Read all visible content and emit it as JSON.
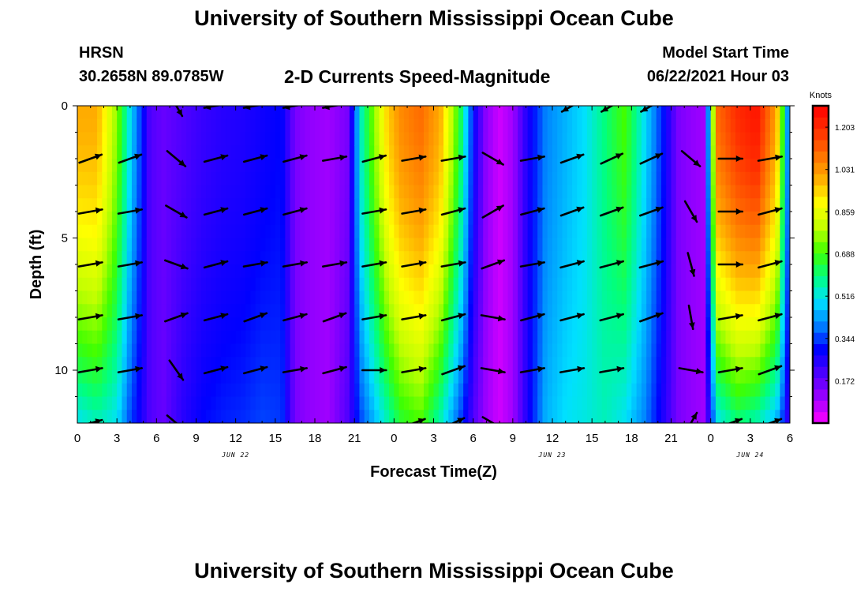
{
  "header": {
    "title": "University of Southern Mississippi Ocean Cube",
    "station": "HRSN",
    "coordinates": "30.2658N  89.0785W",
    "product": "2-D Currents Speed-Magnitude",
    "model_start_label": "Model Start Time",
    "model_start_value": "06/22/2021 Hour 03"
  },
  "footer": {
    "title": "University of Southern Mississippi Ocean Cube"
  },
  "chart_data": {
    "type": "heatmap",
    "xlabel": "Forecast Time(Z)",
    "ylabel": "Depth (ft)",
    "x_ticks": [
      "0",
      "3",
      "6",
      "9",
      "12",
      "15",
      "18",
      "21",
      "0",
      "3",
      "6",
      "9",
      "12",
      "15",
      "18",
      "21",
      "0",
      "3",
      "6"
    ],
    "x_range_hours": [
      0,
      54
    ],
    "day_labels": [
      {
        "label": "JUN 22",
        "hour": 12
      },
      {
        "label": "JUN 23",
        "hour": 36
      },
      {
        "label": "JUN 24",
        "hour": 51
      }
    ],
    "y_ticks": [
      0,
      5,
      10
    ],
    "ylim": [
      0,
      12
    ],
    "y_reversed": true,
    "colorbar": {
      "title": "Knots",
      "ticks": [
        1.203,
        1.031,
        0.859,
        0.688,
        0.516,
        0.344,
        0.172
      ],
      "vmin": 0.0,
      "vmax": 1.29,
      "colors": [
        "#ff00ff",
        "#a000ff",
        "#5000ff",
        "#0000ff",
        "#0080ff",
        "#00e0ff",
        "#00ff80",
        "#40ff00",
        "#c0ff00",
        "#ffff00",
        "#ffb000",
        "#ff7000",
        "#ff3000",
        "#ff0000"
      ]
    },
    "speed_samples_knots": {
      "hours": [
        0,
        1.5,
        3,
        4,
        4.5,
        5.5,
        6.5,
        8,
        9.5,
        11,
        12.5,
        14,
        15.5,
        16.5,
        17.5,
        19,
        20.5,
        21.5,
        22.5,
        23.5,
        24.5,
        26,
        27.5,
        29,
        30,
        31,
        32,
        33,
        34,
        35.5,
        37,
        38.5,
        40,
        41.5,
        43,
        44.5,
        45.5,
        46.5,
        47.5,
        48.5,
        50,
        51.5,
        53,
        54
      ],
      "surface": [
        1.0,
        1.0,
        0.75,
        0.5,
        0.4,
        0.2,
        0.17,
        0.2,
        0.23,
        0.25,
        0.26,
        0.28,
        0.3,
        0.15,
        0.12,
        0.1,
        0.15,
        0.55,
        0.75,
        0.95,
        1.05,
        1.1,
        1.0,
        0.65,
        0.3,
        0.12,
        0.05,
        0.1,
        0.25,
        0.4,
        0.45,
        0.5,
        0.6,
        0.7,
        0.5,
        0.3,
        0.15,
        0.12,
        0.1,
        1.1,
        1.2,
        1.25,
        1.0,
        0.3
      ],
      "bottom": [
        0.5,
        0.55,
        0.5,
        0.35,
        0.3,
        0.2,
        0.17,
        0.25,
        0.3,
        0.32,
        0.33,
        0.35,
        0.34,
        0.15,
        0.12,
        0.1,
        0.2,
        0.35,
        0.45,
        0.55,
        0.65,
        0.7,
        0.55,
        0.35,
        0.2,
        0.1,
        0.05,
        0.1,
        0.25,
        0.45,
        0.5,
        0.52,
        0.55,
        0.5,
        0.4,
        0.25,
        0.15,
        0.12,
        0.1,
        0.5,
        0.6,
        0.55,
        0.45,
        0.2
      ]
    },
    "vectors": {
      "hours": [
        1,
        4,
        7.5,
        10.5,
        13.5,
        16.5,
        19.5,
        22.5,
        25.5,
        28.5,
        31.5,
        34.5,
        37.5,
        40.5,
        43.5,
        46.5,
        49.5,
        52.5
      ],
      "depths": [
        0,
        2,
        4,
        6,
        8,
        10,
        12
      ],
      "angles_deg": [
        [
          null,
          null,
          -60,
          -170,
          -170,
          -170,
          -170,
          null,
          null,
          null,
          null,
          null,
          -150,
          -150,
          -150,
          null,
          null,
          null
        ],
        [
          20,
          20,
          -40,
          15,
          15,
          15,
          10,
          15,
          10,
          10,
          -30,
          10,
          20,
          25,
          25,
          -40,
          0,
          10
        ],
        [
          10,
          10,
          -30,
          15,
          15,
          15,
          null,
          10,
          10,
          15,
          30,
          15,
          20,
          20,
          20,
          -60,
          0,
          15
        ],
        [
          10,
          10,
          -20,
          15,
          10,
          10,
          10,
          10,
          10,
          10,
          20,
          10,
          15,
          15,
          15,
          -75,
          0,
          15
        ],
        [
          10,
          10,
          20,
          15,
          20,
          15,
          20,
          10,
          10,
          15,
          -10,
          15,
          15,
          15,
          20,
          -80,
          10,
          15
        ],
        [
          10,
          10,
          -55,
          15,
          15,
          10,
          15,
          0,
          10,
          20,
          -10,
          10,
          10,
          10,
          null,
          -10,
          10,
          20
        ],
        [
          15,
          null,
          -40,
          null,
          null,
          null,
          null,
          null,
          20,
          25,
          -30,
          null,
          null,
          null,
          null,
          60,
          20,
          20
        ]
      ]
    }
  }
}
